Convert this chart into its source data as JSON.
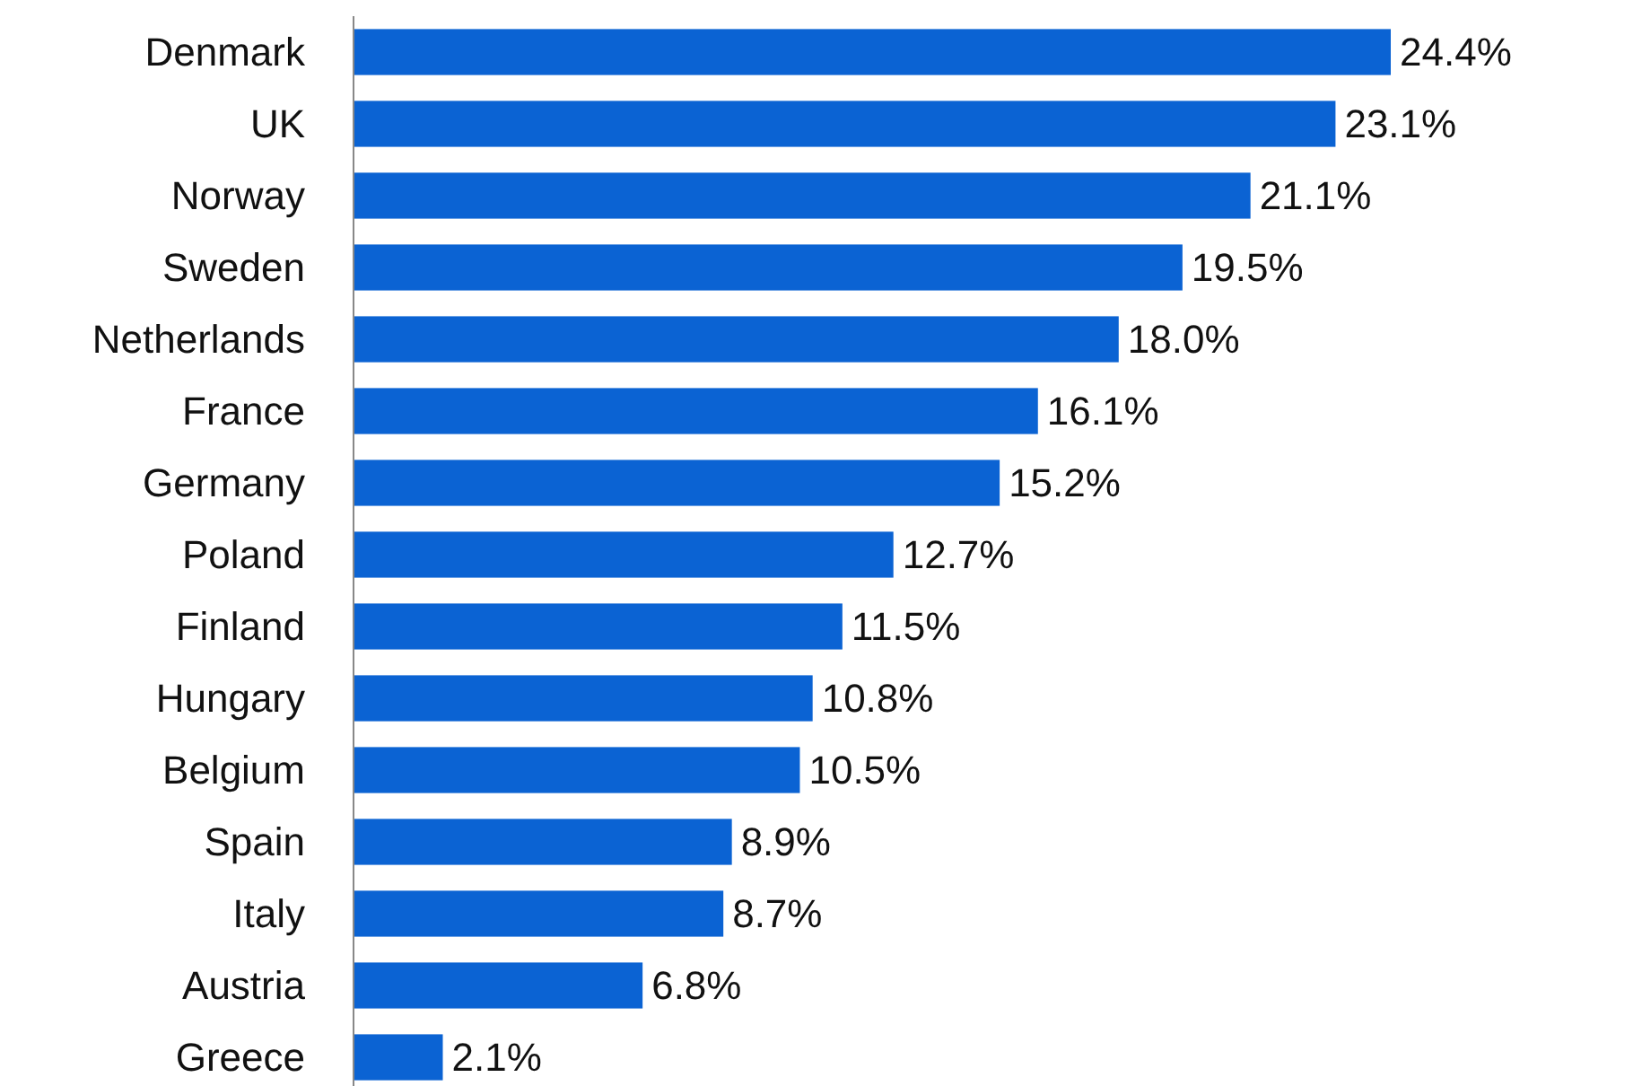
{
  "chart_data": {
    "type": "bar",
    "orientation": "horizontal",
    "categories": [
      "Denmark",
      "UK",
      "Norway",
      "Sweden",
      "Netherlands",
      "France",
      "Germany",
      "Poland",
      "Finland",
      "Hungary",
      "Belgium",
      "Spain",
      "Italy",
      "Austria",
      "Greece"
    ],
    "values": [
      24.4,
      23.1,
      21.1,
      19.5,
      18.0,
      16.1,
      15.2,
      12.7,
      11.5,
      10.8,
      10.5,
      8.9,
      8.7,
      6.8,
      2.1
    ],
    "value_labels": [
      "24.4%",
      "23.1%",
      "21.1%",
      "19.5%",
      "18.0%",
      "16.1%",
      "15.2%",
      "12.7%",
      "11.5%",
      "10.8%",
      "10.5%",
      "8.9%",
      "8.7%",
      "6.8%",
      "2.1%"
    ],
    "color": "#0b63d3"
  }
}
